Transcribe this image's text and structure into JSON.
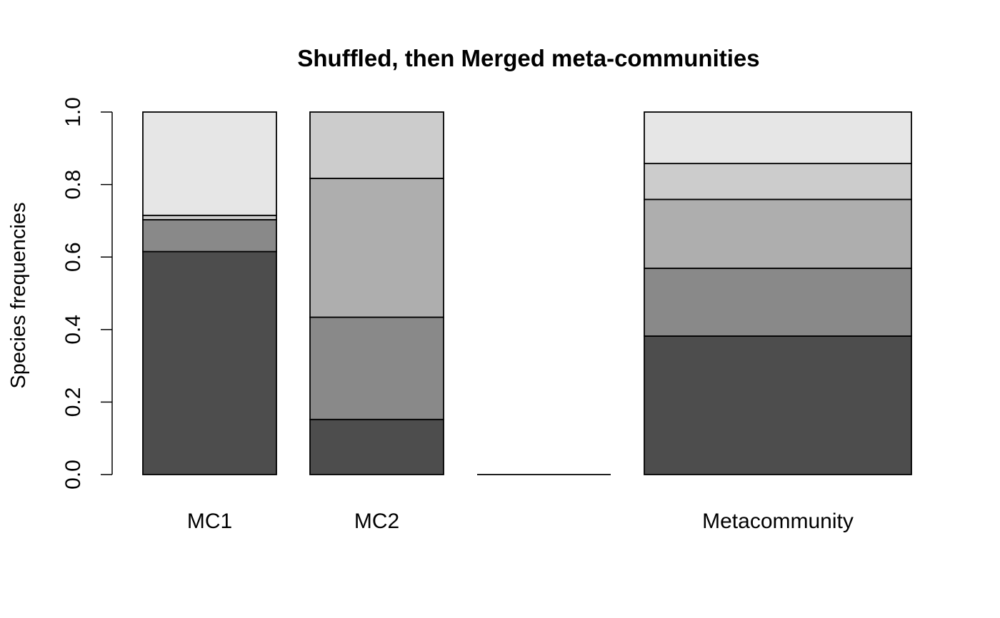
{
  "chart_data": {
    "type": "bar",
    "stacked": true,
    "title": "Shuffled, then Merged meta-communities",
    "xlabel": "",
    "ylabel": "Species frequencies",
    "ylim": [
      0,
      1
    ],
    "yticks": [
      "0.0",
      "0.2",
      "0.4",
      "0.6",
      "0.8",
      "1.0"
    ],
    "categories": [
      "MC1",
      "MC2",
      "",
      "Metacommunity"
    ],
    "colors": [
      "#4d4d4d",
      "#898989",
      "#aeaeae",
      "#cccccc",
      "#e6e6e6"
    ],
    "series": [
      {
        "values": [
          0.615,
          0.152,
          0.0,
          0.382
        ]
      },
      {
        "values": [
          0.088,
          0.282,
          0.0,
          0.187
        ]
      },
      {
        "values": [
          0.0,
          0.383,
          0.0,
          0.19
        ]
      },
      {
        "values": [
          0.012,
          0.183,
          0.0,
          0.099
        ]
      },
      {
        "values": [
          0.285,
          0.0,
          0.0,
          0.142
        ]
      }
    ]
  }
}
